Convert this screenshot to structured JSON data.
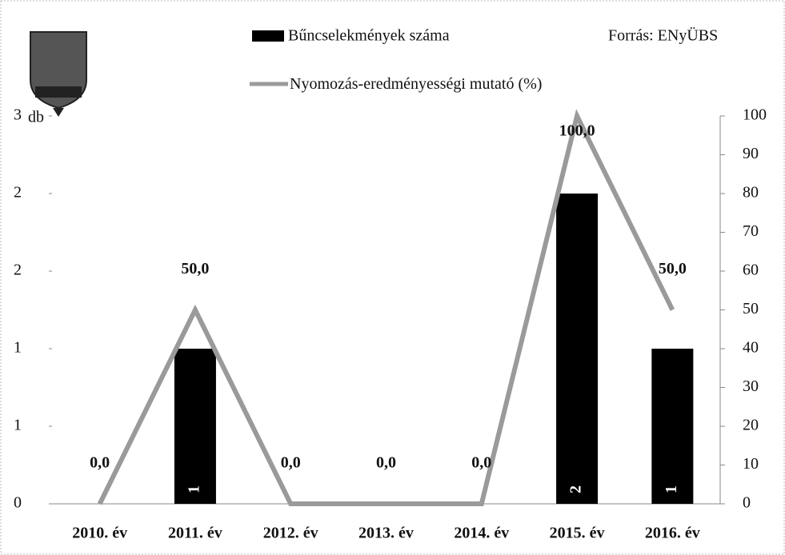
{
  "chart_data": {
    "type": "bar_line",
    "source": "Forrás: ENyÜBS",
    "y_label": "db",
    "categories": [
      "2010. év",
      "2011. év",
      "2012. év",
      "2013. év",
      "2014. év",
      "2015. év",
      "2016. év"
    ],
    "series": [
      {
        "name": "Bűncselekmények száma",
        "type": "bar",
        "color": "#000000",
        "values": [
          0,
          1,
          0,
          0,
          0,
          2,
          1
        ],
        "value_labels": [
          null,
          "1",
          null,
          null,
          null,
          "2",
          "1"
        ]
      },
      {
        "name": "Nyomozás-eredményességi mutató (%)",
        "type": "line",
        "axis": "y2",
        "color": "#9a9a9a",
        "values": [
          0,
          50,
          0,
          0,
          0,
          100,
          50
        ],
        "value_labels": [
          "0,0",
          "50,0",
          "0,0",
          "0,0",
          "0,0",
          "100,0",
          "50,0"
        ]
      }
    ],
    "ylim": [
      0,
      2.5
    ],
    "yticks": [
      0,
      {
        "value": 0.5,
        "label": "1"
      },
      {
        "value": 1,
        "label": "1"
      },
      {
        "value": 1.5,
        "label": "2"
      },
      {
        "value": 2,
        "label": "2"
      },
      {
        "value": 2.5,
        "label": "3"
      }
    ],
    "y2lim": [
      0,
      100
    ],
    "y2ticks": [
      0,
      10,
      20,
      30,
      40,
      50,
      60,
      70,
      80,
      90,
      100
    ],
    "grid": false
  }
}
